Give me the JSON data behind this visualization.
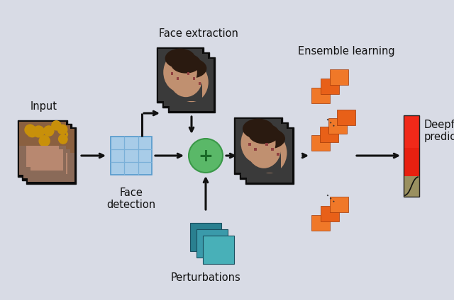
{
  "bg_color": "#d8dbe5",
  "fig_width": 6.4,
  "fig_height": 4.24,
  "labels": {
    "input": "Input",
    "face_detection": "Face\ndetection",
    "face_extraction": "Face extraction",
    "perturbations": "Perturbations",
    "ensemble": "Ensemble learning",
    "deepfake": "Deepfake\nprediction"
  },
  "label_fontsize": 10.5,
  "arrow_color": "#111111",
  "face_det_grid_color": "#7ab0d8",
  "face_det_grid_bg": "#a8cce8",
  "plus_circle_color": "#5ab868",
  "plus_circle_edge": "#3a9848",
  "orange1": "#f07828",
  "orange2": "#e86010",
  "teal1": "#2a8090",
  "teal2": "#3a9aaa",
  "teal3": "#48b0b8",
  "red_top": "#e82010",
  "red_bottom": "#d03020",
  "olive": "#9a9060"
}
